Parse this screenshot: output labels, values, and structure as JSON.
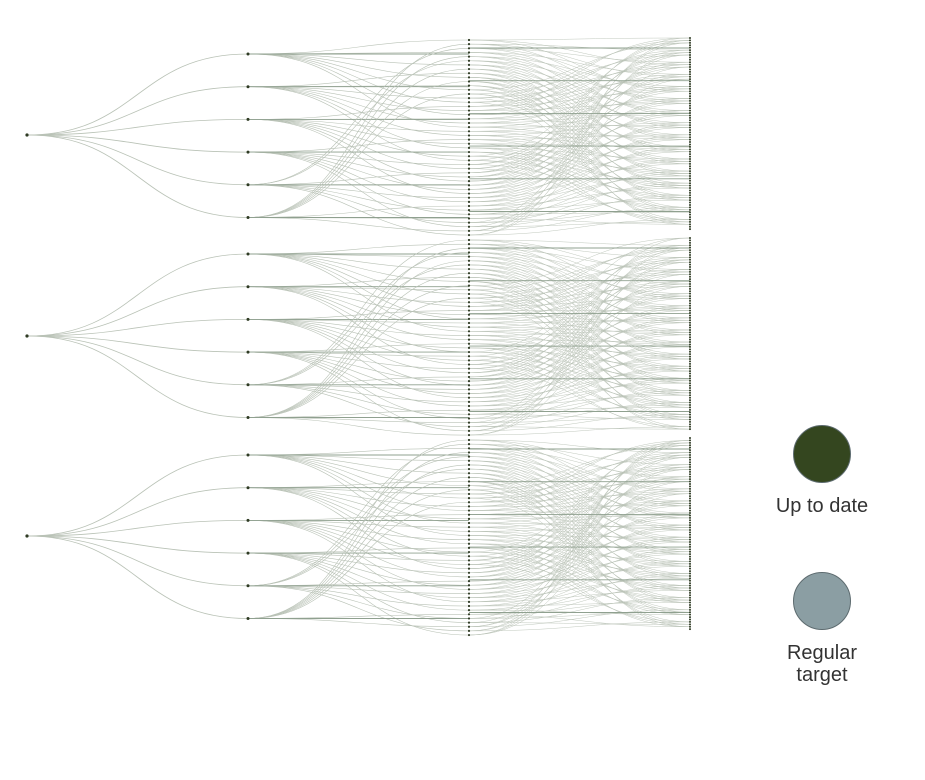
{
  "diagram": {
    "type": "dependency-tree",
    "roots": 3,
    "children_per_root": 6,
    "leaf_targets_per_child": 8,
    "colors": {
      "up_to_date": "#34461f",
      "regular_target": "#8b9ea3",
      "edge": "#b9c2b6",
      "edge_focus": "#8fa08f",
      "node": "#2f3b24"
    }
  },
  "legend": {
    "up_to_date": {
      "label": "Up to date",
      "color": "#34461f"
    },
    "regular_target": {
      "label": "Regular\ntarget",
      "color": "#8b9ea3"
    }
  }
}
